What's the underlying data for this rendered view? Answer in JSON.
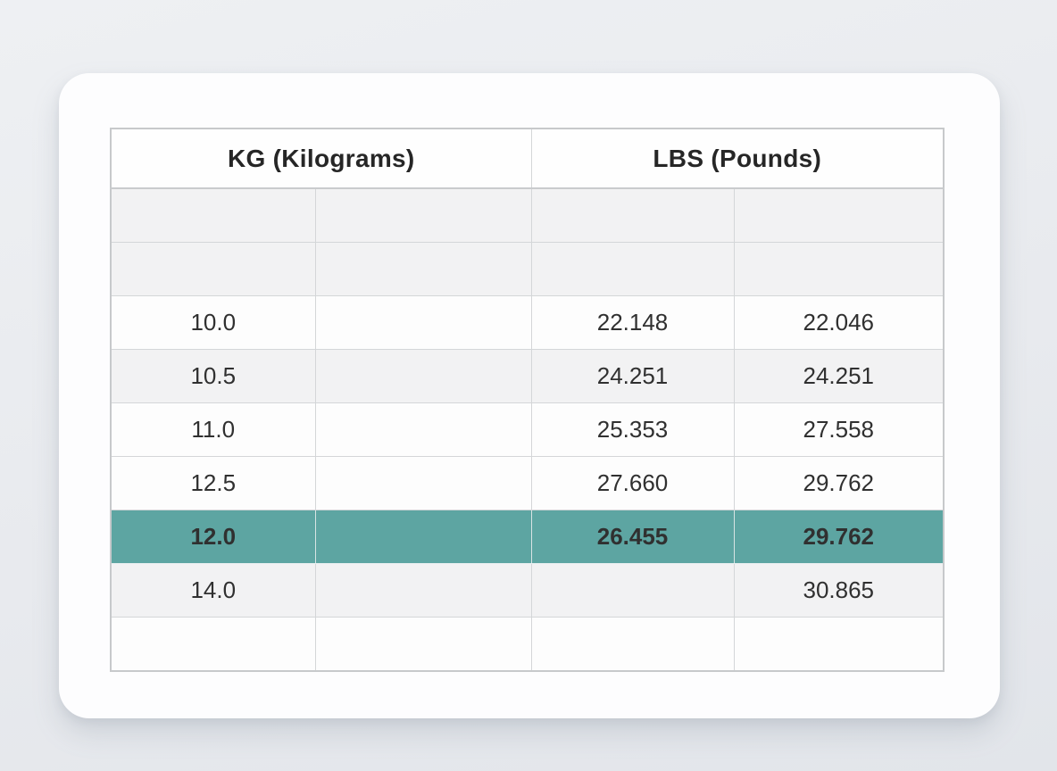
{
  "page": {
    "background_color": "#e8eaee",
    "card_color": "#fdfdfe"
  },
  "table": {
    "header_groups": [
      {
        "label": "KG (Kilograms)",
        "span": 2
      },
      {
        "label": "LBS (Pounds)",
        "span": 2
      }
    ],
    "highlight_color": "#5da5a2",
    "rows": [
      {
        "cells": [
          "",
          "",
          "",
          ""
        ],
        "shade": "gray",
        "highlighted": false
      },
      {
        "cells": [
          "",
          "",
          "",
          ""
        ],
        "shade": "gray",
        "highlighted": false
      },
      {
        "cells": [
          "10.0",
          "",
          "22.148",
          "22.046"
        ],
        "shade": "white",
        "highlighted": false
      },
      {
        "cells": [
          "10.5",
          "",
          "24.251",
          "24.251"
        ],
        "shade": "gray",
        "highlighted": false
      },
      {
        "cells": [
          "11.0",
          "",
          "25.353",
          "27.558"
        ],
        "shade": "white",
        "highlighted": false
      },
      {
        "cells": [
          "12.5",
          "",
          "27.660",
          "29.762"
        ],
        "shade": "white",
        "highlighted": false
      },
      {
        "cells": [
          "12.0",
          "",
          "26.455",
          "29.762"
        ],
        "shade": "teal",
        "highlighted": true
      },
      {
        "cells": [
          "14.0",
          "",
          "",
          "30.865"
        ],
        "shade": "gray",
        "highlighted": false
      },
      {
        "cells": [
          "",
          "",
          "",
          ""
        ],
        "shade": "white",
        "highlighted": false
      }
    ]
  },
  "chart_data": {
    "type": "table",
    "title": "",
    "column_groups": [
      "KG (Kilograms)",
      "LBS (Pounds)"
    ],
    "columns": [
      "kg",
      "kg_2",
      "lbs_1",
      "lbs_2"
    ],
    "rows": [
      [
        "10.0",
        "",
        "22.148",
        "22.046"
      ],
      [
        "10.5",
        "",
        "24.251",
        "24.251"
      ],
      [
        "11.0",
        "",
        "25.353",
        "27.558"
      ],
      [
        "12.5",
        "",
        "27.660",
        "29.762"
      ],
      [
        "12.0",
        "",
        "26.455",
        "29.762"
      ],
      [
        "14.0",
        "",
        "",
        "30.865"
      ]
    ],
    "highlighted_row": [
      "12.0",
      "",
      "26.455",
      "29.762"
    ],
    "layout_hints": {
      "empty_leading_rows": 2,
      "empty_trailing_rows": 1,
      "grid": true,
      "highlight_color": "#5da5a2"
    }
  }
}
